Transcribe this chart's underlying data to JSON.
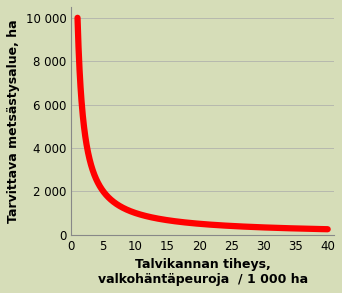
{
  "background_color": "#d6ddb8",
  "plot_bg_color": "#d6ddb8",
  "line_color": "#ff0000",
  "line_width": 4.5,
  "ylabel": "Tarvittava metsästysalue, ha",
  "xlabel_line1": "Talvikannan tiheys,",
  "xlabel_line2": "valkohäntäpeuroja  / 1 000 ha",
  "xlim": [
    0,
    41
  ],
  "ylim": [
    0,
    10500
  ],
  "x_ticks": [
    0,
    5,
    10,
    15,
    20,
    25,
    30,
    35,
    40
  ],
  "y_ticks": [
    0,
    2000,
    4000,
    6000,
    8000,
    10000
  ],
  "y_tick_labels": [
    "0",
    "2 000",
    "4 000",
    "6 000",
    "8 000",
    "10 000"
  ],
  "curve_k": 10000,
  "curve_x_start": 1.0,
  "curve_x_end": 40.0,
  "axis_label_fontsize": 9,
  "tick_fontsize": 8.5,
  "border_color": "#5a6a3a"
}
